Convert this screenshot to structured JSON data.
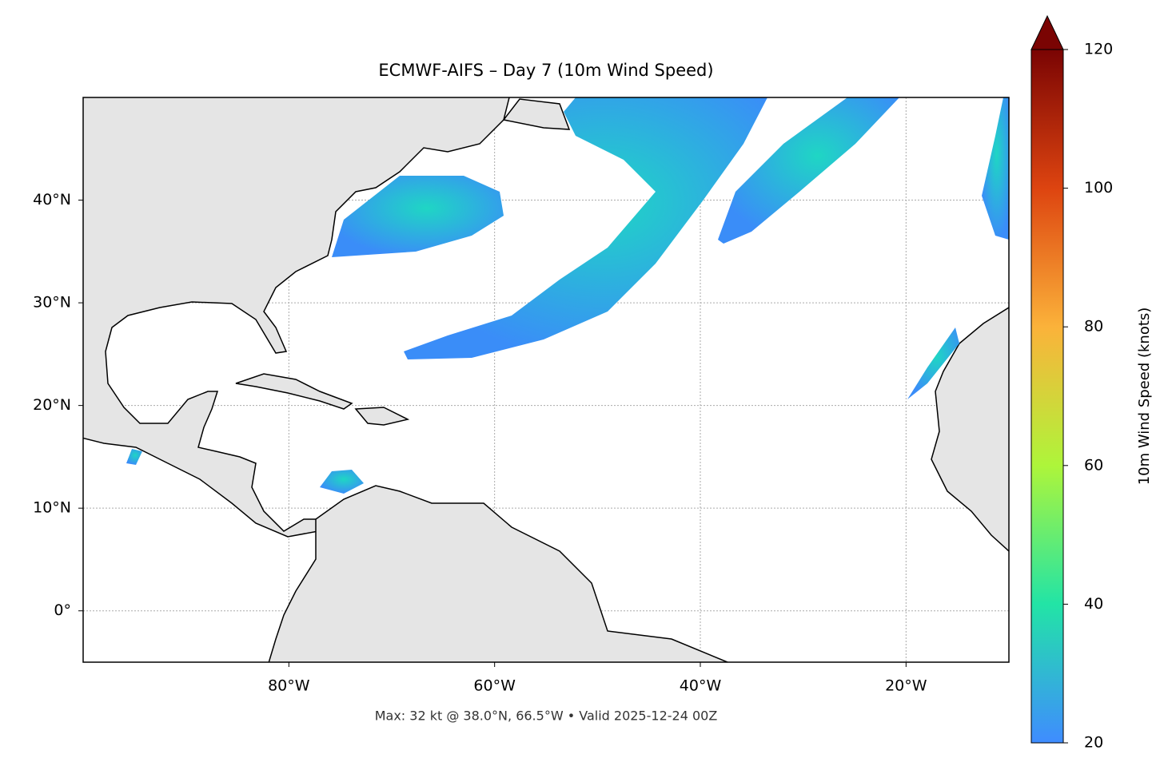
{
  "map": {
    "title": "ECMWF-AIFS – Day 7 (10m Wind Speed)",
    "footnote": "Max: 32 kt @ 38.0°N, 66.5°W • Valid 2025-12-24 00Z",
    "xlim": [
      -100,
      -10
    ],
    "ylim": [
      -5,
      50
    ],
    "lon_ticks": [
      {
        "value": -80,
        "label": "80°W"
      },
      {
        "value": -60,
        "label": "60°W"
      },
      {
        "value": -40,
        "label": "40°W"
      },
      {
        "value": -20,
        "label": "20°W"
      }
    ],
    "lat_ticks": [
      {
        "value": 0,
        "label": "0°"
      },
      {
        "value": 10,
        "label": "10°N"
      },
      {
        "value": 20,
        "label": "20°N"
      },
      {
        "value": 30,
        "label": "30°N"
      },
      {
        "value": 40,
        "label": "40°N"
      }
    ],
    "colorbar": {
      "label": "10m Wind Speed (knots)",
      "lim": [
        20,
        120
      ],
      "ticks": [
        20,
        40,
        60,
        80,
        100,
        120
      ]
    }
  }
}
